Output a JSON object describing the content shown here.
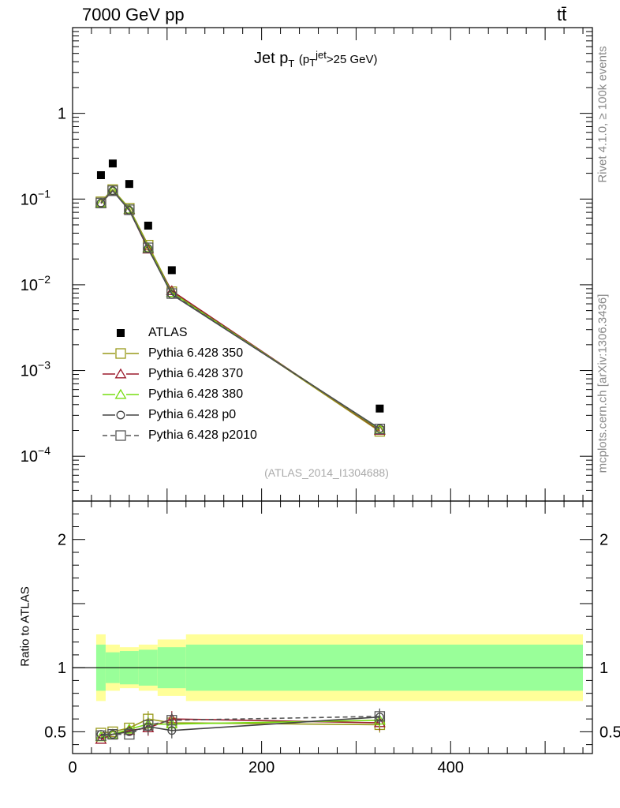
{
  "header": {
    "energy_label": "7000 GeV pp",
    "process_label": "tt̄",
    "rivet_label": "Rivet 4.1.0, ≥ 100k events",
    "source_label": "mcplots.cern.ch [arXiv:1306.3436]"
  },
  "chart_data": {
    "type": "line",
    "title": {
      "main": "Jet p",
      "sub_T": "T",
      "paren_open": "(p",
      "sup_jet": "jet",
      "sub_T2": "T",
      "cut": ">25 GeV)"
    },
    "analysis_label": "(ATLAS_2014_I1304688)",
    "xlabel": "",
    "ylabel_ratio": "Ratio to ATLAS",
    "xlim": [
      0,
      550
    ],
    "ylim_main": [
      3e-05,
      10
    ],
    "ylim_ratio": [
      0.33,
      2.3
    ],
    "main_yticks": [
      {
        "value": 1,
        "label": "1"
      },
      {
        "value": 0.1,
        "label": "10",
        "exp": "−1"
      },
      {
        "value": 0.01,
        "label": "10",
        "exp": "−2"
      },
      {
        "value": 0.001,
        "label": "10",
        "exp": "−3"
      },
      {
        "value": 0.0001,
        "label": "10",
        "exp": "−4"
      }
    ],
    "ratio_yticks": [
      {
        "value": 0.5,
        "label": "0.5"
      },
      {
        "value": 1,
        "label": "1"
      },
      {
        "value": 2,
        "label": "2"
      }
    ],
    "xticks": [
      {
        "value": 0,
        "label": "0"
      },
      {
        "value": 200,
        "label": "200"
      },
      {
        "value": 400,
        "label": "400"
      }
    ],
    "bin_edges": [
      25,
      35,
      50,
      70,
      90,
      120,
      540
    ],
    "data": {
      "name": "ATLAS",
      "x": [
        30,
        42.5,
        60,
        80,
        105,
        325
      ],
      "y": [
        0.19,
        0.26,
        0.15,
        0.049,
        0.0148,
        0.00036
      ]
    },
    "band_inner": [
      0.18,
      0.12,
      0.13,
      0.14,
      0.16,
      0.18
    ],
    "band_outer": [
      0.26,
      0.18,
      0.16,
      0.18,
      0.22,
      0.26
    ],
    "series": [
      {
        "name": "Pythia 6.428 350",
        "color": "#999a1a",
        "marker": "square",
        "dash": false,
        "y": [
          0.093,
          0.129,
          0.078,
          0.029,
          0.0083,
          0.000195
        ],
        "ratio": [
          0.49,
          0.5,
          0.53,
          0.6,
          0.57,
          0.555
        ]
      },
      {
        "name": "Pythia 6.428 370",
        "color": "#9b1b2d",
        "marker": "triangle",
        "dash": false,
        "y": [
          0.089,
          0.125,
          0.075,
          0.026,
          0.0085,
          0.0002
        ],
        "ratio": [
          0.44,
          0.48,
          0.51,
          0.53,
          0.6,
          0.57
        ]
      },
      {
        "name": "Pythia 6.428 380",
        "color": "#77dd11",
        "marker": "triangle",
        "dash": false,
        "y": [
          0.09,
          0.126,
          0.076,
          0.027,
          0.0081,
          0.000205
        ],
        "ratio": [
          0.46,
          0.48,
          0.52,
          0.56,
          0.56,
          0.59
        ]
      },
      {
        "name": "Pythia 6.428 p0",
        "color": "#444444",
        "marker": "circle",
        "dash": false,
        "y": [
          0.09,
          0.125,
          0.074,
          0.0265,
          0.0077,
          0.00021
        ],
        "ratio": [
          0.48,
          0.48,
          0.5,
          0.54,
          0.51,
          0.615
        ]
      },
      {
        "name": "Pythia 6.428 p2010",
        "color": "#555555",
        "marker": "square",
        "dash": true,
        "y": [
          0.09,
          0.125,
          0.075,
          0.027,
          0.0079,
          0.000208
        ],
        "ratio": [
          0.47,
          0.48,
          0.48,
          0.55,
          0.59,
          0.62
        ]
      }
    ]
  }
}
